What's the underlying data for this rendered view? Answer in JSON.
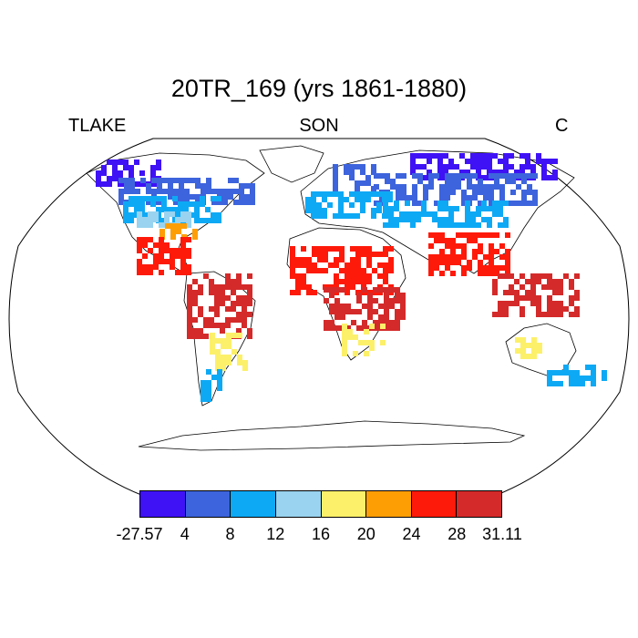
{
  "title": "20TR_169 (yrs 1861-1880)",
  "left_label": "TLAKE",
  "center_label": "SON",
  "right_label": "C",
  "colorbar": {
    "colors": [
      "#3f12f5",
      "#3d64dc",
      "#0ea9f5",
      "#99d3ef",
      "#fcf06a",
      "#fe9e05",
      "#fe1a0a",
      "#d42a2a"
    ],
    "labels": [
      "-27.57",
      "4",
      "8",
      "12",
      "16",
      "20",
      "24",
      "28",
      "31.11"
    ]
  },
  "regions": [
    {
      "name": "arctic-canada",
      "color": "#3f12f5"
    },
    {
      "name": "siberia",
      "color": "#3f12f5"
    },
    {
      "name": "canada",
      "color": "#3d64dc"
    },
    {
      "name": "scandinavia",
      "color": "#3d64dc"
    },
    {
      "name": "russia",
      "color": "#3d64dc"
    },
    {
      "name": "usa-north",
      "color": "#0ea9f5"
    },
    {
      "name": "central-asia",
      "color": "#0ea9f5"
    },
    {
      "name": "europe",
      "color": "#0ea9f5"
    },
    {
      "name": "usa-central",
      "color": "#99d3ef"
    },
    {
      "name": "usa-south",
      "color": "#fe9e05"
    },
    {
      "name": "mexico",
      "color": "#fe1a0a"
    },
    {
      "name": "amazon",
      "color": "#d42a2a"
    },
    {
      "name": "brazil-south",
      "color": "#fcf06a"
    },
    {
      "name": "patagonia",
      "color": "#0ea9f5"
    },
    {
      "name": "africa-west",
      "color": "#fe1a0a"
    },
    {
      "name": "africa-central",
      "color": "#d42a2a"
    },
    {
      "name": "africa-south",
      "color": "#fcf06a"
    },
    {
      "name": "india",
      "color": "#fe1a0a"
    },
    {
      "name": "se-asia",
      "color": "#d42a2a"
    },
    {
      "name": "australia",
      "color": "#fcf06a"
    },
    {
      "name": "nz",
      "color": "#0ea9f5"
    }
  ]
}
